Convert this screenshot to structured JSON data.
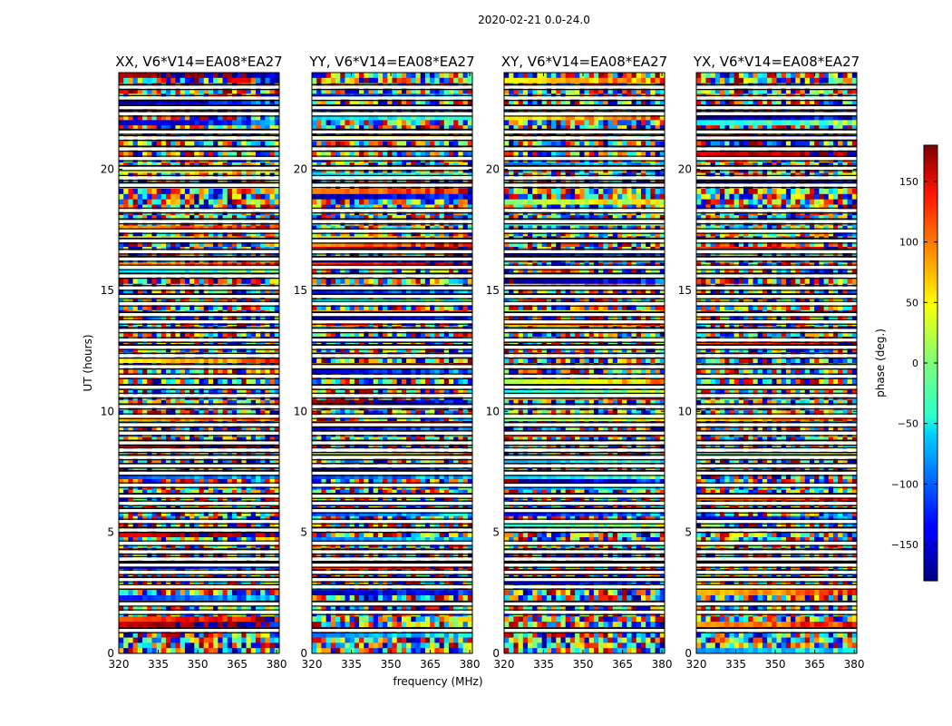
{
  "figure": {
    "title": "2020-02-21 0.0-24.0",
    "xlabel": "frequency (MHz)",
    "ylabel": "UT (hours)"
  },
  "chart_data": {
    "type": "heatmap",
    "title": "2020-02-21 0.0-24.0",
    "xlabel": "frequency (MHz)",
    "ylabel": "UT (hours)",
    "xlim": [
      320,
      381
    ],
    "ylim": [
      0,
      24
    ],
    "xticks": [
      "320",
      "335",
      "350",
      "365",
      "380"
    ],
    "xtick_values": [
      320,
      335,
      350,
      365,
      380
    ],
    "yticks": [
      "0",
      "5",
      "10",
      "15",
      "20"
    ],
    "ytick_values": [
      0,
      5,
      10,
      15,
      20
    ],
    "panels": [
      {
        "title": "XX, V6*V14=EA08*EA27"
      },
      {
        "title": "YY, V6*V14=EA08*EA27"
      },
      {
        "title": "XY, V6*V14=EA08*EA27"
      },
      {
        "title": "YX, V6*V14=EA08*EA27"
      }
    ],
    "colorbar": {
      "label": "phase (deg.)",
      "range": [
        -180,
        180
      ],
      "colormap": "jet",
      "ticks": [
        "150",
        "100",
        "50",
        "0",
        "−50",
        "−100",
        "−150"
      ],
      "tick_values": [
        150,
        100,
        50,
        0,
        -50,
        -100,
        -150
      ]
    },
    "flagged_ut_hours": [
      0.95,
      1.7,
      2.05,
      2.75,
      3.05,
      3.35,
      3.65,
      3.9,
      4.2,
      4.55,
      5.1,
      5.45,
      5.9,
      6.2,
      6.5,
      6.95,
      7.45,
      7.75,
      8.1,
      8.4,
      8.7,
      9.1,
      9.45,
      9.8,
      10.2,
      10.65,
      11.0,
      11.45,
      11.85,
      12.3,
      12.65,
      12.95,
      13.35,
      13.7,
      14.0,
      14.45,
      14.75,
      15.1,
      15.6,
      15.95,
      16.3,
      16.6,
      17.05,
      17.45,
      17.85,
      18.3,
      19.35,
      19.65,
      20.05,
      20.45,
      20.85,
      21.3,
      21.55,
      22.3,
      22.55,
      22.95,
      23.4
    ]
  }
}
